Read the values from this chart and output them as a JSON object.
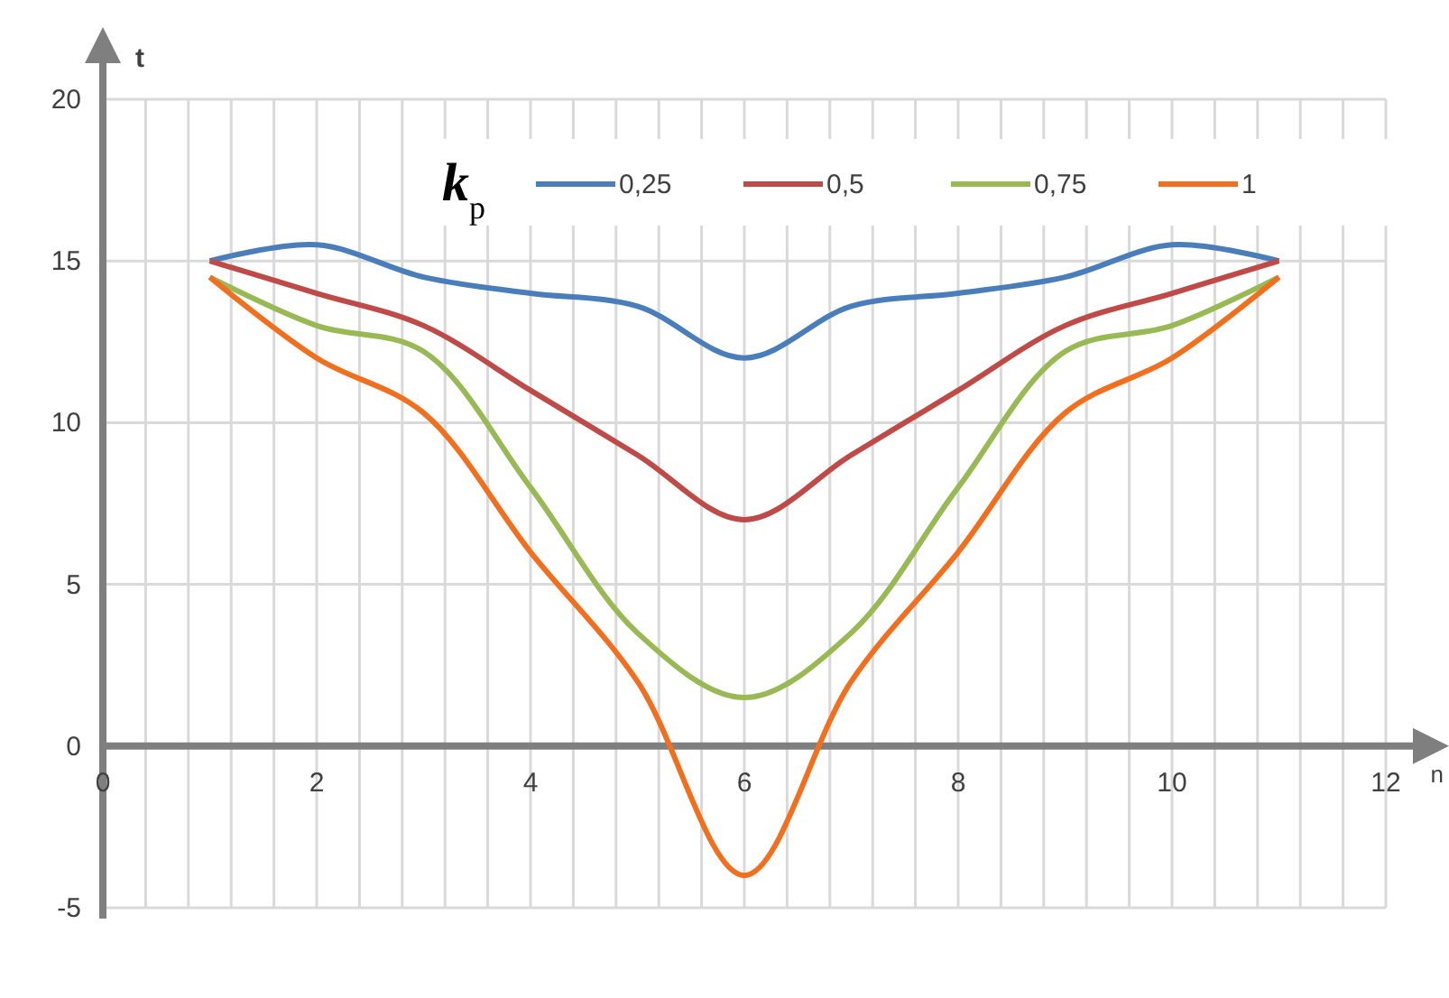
{
  "chart_data": {
    "type": "line",
    "xlabel": "n",
    "ylabel": "t",
    "legend_title": "k$_{p}$",
    "x": [
      1,
      2,
      3,
      4,
      5,
      6,
      7,
      8,
      9,
      10,
      11
    ],
    "series": [
      {
        "name": "0,25",
        "color": "#4a7ebb",
        "values": [
          15,
          15.5,
          14.5,
          14,
          13.6,
          12,
          13.6,
          14,
          14.5,
          15.5,
          15
        ]
      },
      {
        "name": "0,5",
        "color": "#be4b48",
        "values": [
          15,
          14,
          13,
          11,
          9,
          7,
          9,
          11,
          13,
          14,
          15
        ]
      },
      {
        "name": "0,75",
        "color": "#98b954",
        "values": [
          14.5,
          13,
          12.2,
          8,
          3.5,
          1.5,
          3.5,
          8,
          12.2,
          13,
          14.5
        ]
      },
      {
        "name": "1",
        "color": "#f07020",
        "values": [
          14.5,
          12,
          10.3,
          6,
          2,
          -4,
          2,
          6,
          10.3,
          12,
          14.5
        ]
      }
    ],
    "xlim": [
      0,
      12
    ],
    "xticks": [
      0,
      {
        "value": 0.4,
        "label": null
      },
      {
        "value": 0.8,
        "label": null
      },
      {
        "value": 1.2,
        "label": null
      },
      {
        "value": 1.6,
        "label": null
      },
      2,
      {
        "value": 2.4,
        "label": null
      },
      {
        "value": 2.8,
        "label": null
      },
      {
        "value": 3.2,
        "label": null
      },
      {
        "value": 3.6,
        "label": null
      },
      4,
      {
        "value": 4.4,
        "label": null
      },
      {
        "value": 4.8,
        "label": null
      },
      {
        "value": 5.2,
        "label": null
      },
      {
        "value": 5.6,
        "label": null
      },
      6,
      {
        "value": 6.4,
        "label": null
      },
      {
        "value": 6.8,
        "label": null
      },
      {
        "value": 7.2,
        "label": null
      },
      {
        "value": 7.6,
        "label": null
      },
      8,
      {
        "value": 8.4,
        "label": null
      },
      {
        "value": 8.8,
        "label": null
      },
      {
        "value": 9.2,
        "label": null
      },
      {
        "value": 9.6,
        "label": null
      },
      10,
      {
        "value": 10.4,
        "label": null
      },
      {
        "value": 10.8,
        "label": null
      },
      {
        "value": 11.2,
        "label": null
      },
      {
        "value": 11.6,
        "label": null
      },
      12
    ],
    "ylim": [
      -5,
      20
    ],
    "yticks": [
      -5,
      0,
      5,
      10,
      15,
      20
    ],
    "grid": true,
    "legend": "top",
    "marker": "none",
    "line_style": "solid"
  }
}
